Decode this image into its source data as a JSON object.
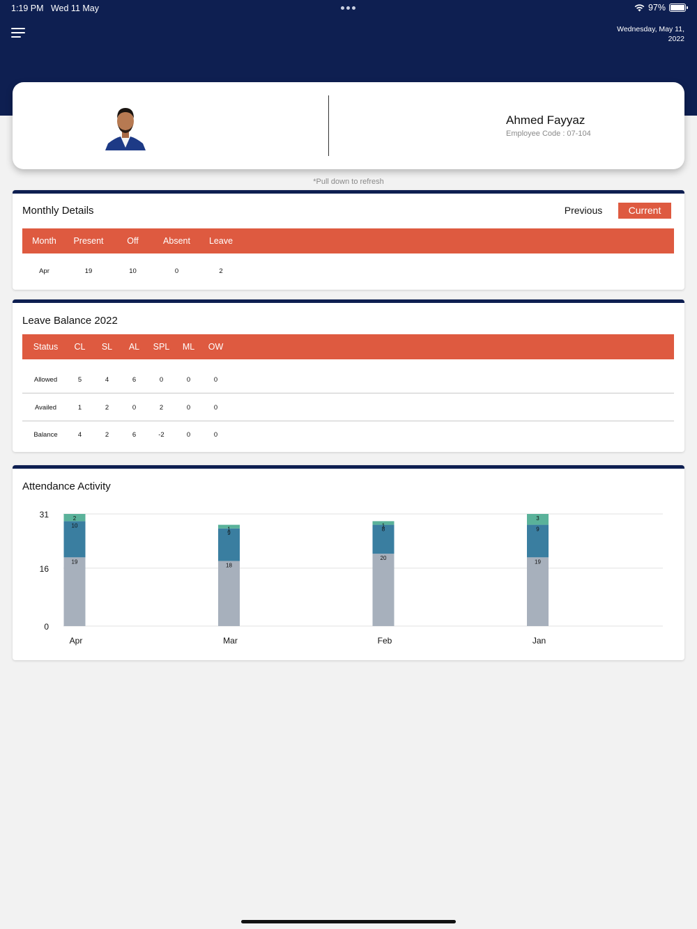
{
  "status_bar": {
    "time": "1:19 PM",
    "date": "Wed 11 May",
    "battery": "97%"
  },
  "header": {
    "date": "Wednesday, May 11, 2022"
  },
  "profile": {
    "name": "Ahmed Fayyaz",
    "employee_code": "Employee Code : 07-104"
  },
  "refresh_hint": "*Pull down to refresh",
  "monthly": {
    "title": "Monthly Details",
    "previous_label": "Previous",
    "current_label": "Current",
    "columns": [
      "Month",
      "Present",
      "Off",
      "Absent",
      "Leave"
    ],
    "rows": [
      [
        "Apr",
        "19",
        "10",
        "0",
        "2"
      ]
    ]
  },
  "leave_balance": {
    "title": "Leave Balance  2022",
    "columns": [
      "Status",
      "CL",
      "SL",
      "AL",
      "SPL",
      "ML",
      "OW"
    ],
    "rows": [
      [
        "Allowed",
        "5",
        "4",
        "6",
        "0",
        "0",
        "0"
      ],
      [
        "Availed",
        "1",
        "2",
        "0",
        "2",
        "0",
        "0"
      ],
      [
        "Balance",
        "4",
        "2",
        "6",
        "-2",
        "0",
        "0"
      ]
    ]
  },
  "activity": {
    "title": "Attendance Activity",
    "chart_data": {
      "type": "bar",
      "stacked": true,
      "categories": [
        "Apr",
        "Mar",
        "Feb",
        "Jan"
      ],
      "ylim": [
        0,
        31
      ],
      "yticks": [
        0,
        16,
        31
      ],
      "grid": true,
      "series": [
        {
          "values": [
            19,
            18,
            20,
            19
          ],
          "color": "#a7b0bc"
        },
        {
          "values": [
            10,
            9,
            8,
            9
          ],
          "color": "#3a7ea0"
        },
        {
          "values": [
            2,
            1,
            1,
            3
          ],
          "color": "#5ab29a"
        }
      ]
    }
  },
  "colors": {
    "navy": "#0e1f51",
    "accent": "#de5a40"
  }
}
